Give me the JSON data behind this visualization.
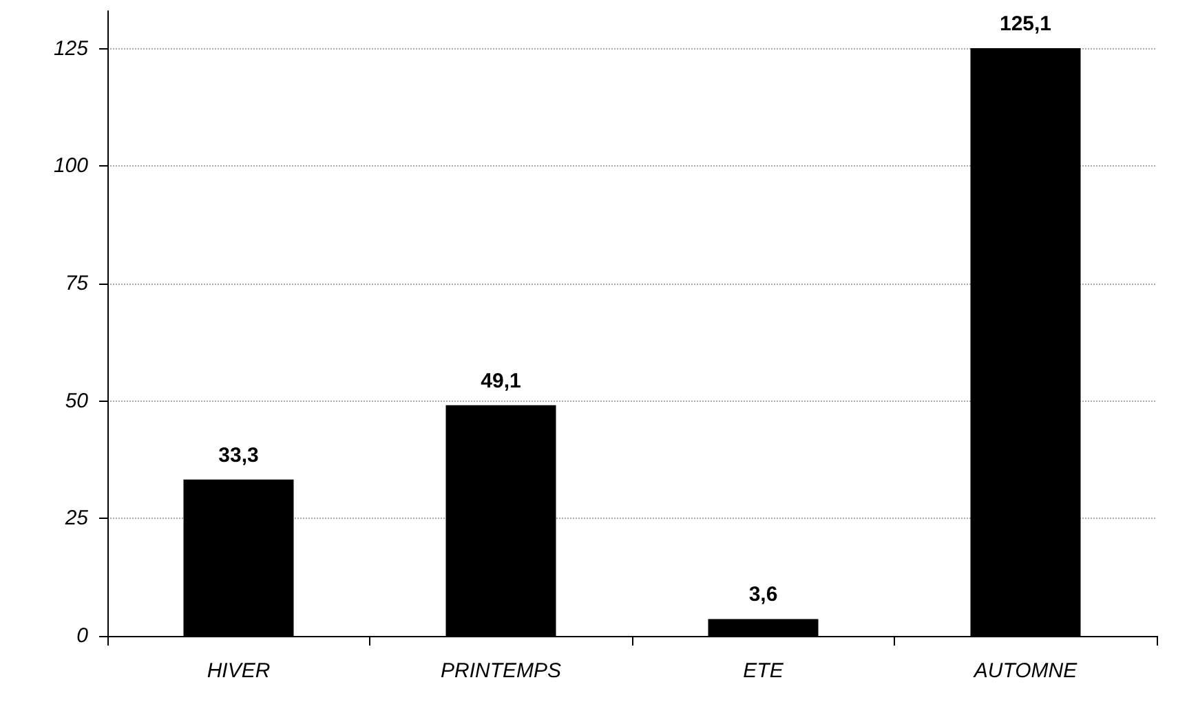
{
  "chart_data": {
    "type": "bar",
    "categories": [
      "HIVER",
      "PRINTEMPS",
      "ETE",
      "AUTOMNE"
    ],
    "series": [
      {
        "color": "#000000",
        "values": [
          33.3,
          49.1,
          3.6,
          125.1
        ],
        "value_labels": [
          "33,3",
          "49,1",
          "3,6",
          "125,1"
        ]
      }
    ],
    "ylim": [
      0,
      133
    ],
    "yticks": [
      0,
      25,
      50,
      75,
      100,
      125
    ],
    "grid": "y"
  }
}
